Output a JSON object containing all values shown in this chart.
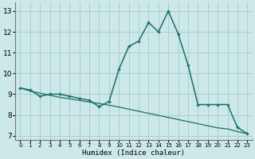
{
  "xlabel": "Humidex (Indice chaleur)",
  "background_color": "#cce8e8",
  "grid_color": "#aacfcf",
  "line_color": "#1a6e6a",
  "xlim": [
    -0.5,
    23.5
  ],
  "ylim": [
    6.8,
    13.4
  ],
  "yticks": [
    7,
    8,
    9,
    10,
    11,
    12,
    13
  ],
  "xticks": [
    0,
    1,
    2,
    3,
    4,
    5,
    6,
    7,
    8,
    9,
    10,
    11,
    12,
    13,
    14,
    15,
    16,
    17,
    18,
    19,
    20,
    21,
    22,
    23
  ],
  "line1_x": [
    0,
    1,
    2,
    3,
    4,
    5,
    6,
    7,
    8,
    9,
    10,
    11,
    12,
    13,
    14,
    15,
    16,
    17,
    18,
    19,
    20,
    21,
    22,
    23
  ],
  "line1_y": [
    9.3,
    9.2,
    8.9,
    9.0,
    9.0,
    8.9,
    8.8,
    8.7,
    8.4,
    8.65,
    10.2,
    11.3,
    11.55,
    12.45,
    12.0,
    13.0,
    11.9,
    10.4,
    8.5,
    8.5,
    8.5,
    8.5,
    7.4,
    7.1
  ],
  "line2_x": [
    0,
    1,
    2,
    3,
    4,
    5,
    6,
    7,
    8,
    9,
    10,
    11,
    12,
    13,
    14,
    15,
    16,
    17,
    18,
    19,
    20,
    21,
    22,
    23
  ],
  "line2_y": [
    9.3,
    9.15,
    9.05,
    8.95,
    8.85,
    8.78,
    8.7,
    8.62,
    8.55,
    8.47,
    8.38,
    8.28,
    8.18,
    8.08,
    7.98,
    7.88,
    7.78,
    7.68,
    7.58,
    7.48,
    7.38,
    7.33,
    7.2,
    7.1
  ]
}
